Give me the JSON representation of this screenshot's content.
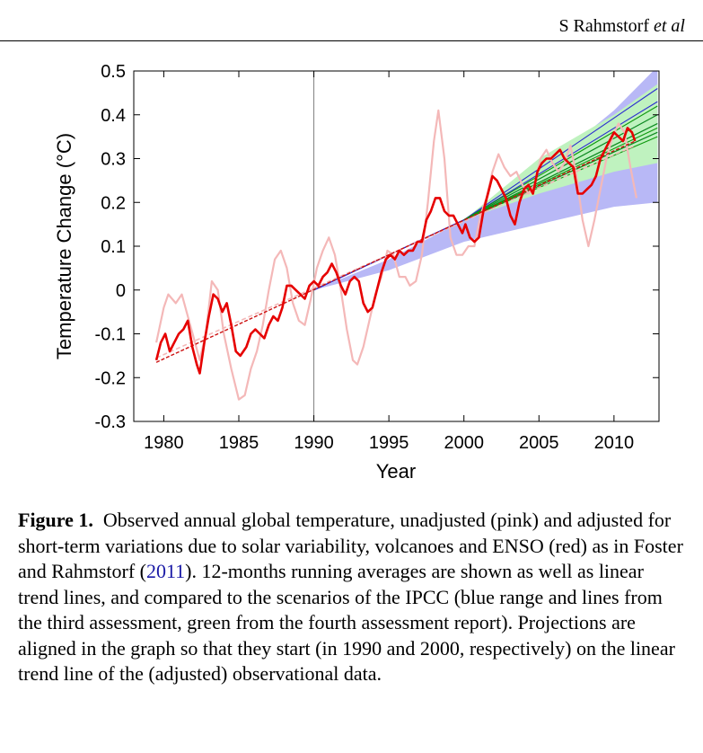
{
  "header": {
    "author": "S Rahmstorf",
    "etal": "et al"
  },
  "chart_data": {
    "type": "line",
    "xlabel": "Year",
    "ylabel": "Temperature Change (°C)",
    "xlim": [
      1978,
      2013
    ],
    "ylim": [
      -0.3,
      0.5
    ],
    "xticks": [
      1980,
      1985,
      1990,
      1995,
      2000,
      2005,
      2010
    ],
    "xtick_labels": [
      "1980",
      "1985",
      "1990",
      "1995",
      "2000",
      "2005",
      "2010"
    ],
    "yticks": [
      -0.3,
      -0.2,
      -0.1,
      0,
      0.1,
      0.2,
      0.3,
      0.4,
      0.5
    ],
    "ytick_labels": [
      "-0.3",
      "-0.2",
      "-0.1",
      "0",
      "0.1",
      "0.2",
      "0.3",
      "0.4",
      "0.5"
    ],
    "vline_x": 1990,
    "grid": false,
    "colors": {
      "unadjusted": "#f4b8b8",
      "adjusted": "#e60000",
      "trend": "#cc1111",
      "ipcc_tar_band": "#b8b8f6",
      "ipcc_ar4_band": "#bff2bf",
      "ipcc_tar_lines": "#2b2bd0",
      "ipcc_ar4_lines": "#0c980c",
      "axes": "#000000",
      "vline": "#808080"
    },
    "series": [
      {
        "key": "unadjusted",
        "points": [
          [
            1979.5,
            -0.12
          ],
          [
            1980.0,
            -0.04
          ],
          [
            1980.3,
            -0.01
          ],
          [
            1980.8,
            -0.03
          ],
          [
            1981.2,
            -0.01
          ],
          [
            1981.6,
            -0.06
          ],
          [
            1982.0,
            -0.11
          ],
          [
            1982.4,
            -0.16
          ],
          [
            1982.8,
            -0.1
          ],
          [
            1983.2,
            0.02
          ],
          [
            1983.6,
            0.0
          ],
          [
            1984.0,
            -0.1
          ],
          [
            1984.5,
            -0.18
          ],
          [
            1985.0,
            -0.25
          ],
          [
            1985.4,
            -0.24
          ],
          [
            1985.8,
            -0.18
          ],
          [
            1986.2,
            -0.14
          ],
          [
            1986.6,
            -0.08
          ],
          [
            1987.0,
            0.0
          ],
          [
            1987.4,
            0.07
          ],
          [
            1987.8,
            0.09
          ],
          [
            1988.2,
            0.05
          ],
          [
            1988.6,
            -0.03
          ],
          [
            1989.0,
            -0.07
          ],
          [
            1989.4,
            -0.08
          ],
          [
            1989.8,
            -0.02
          ],
          [
            1990.2,
            0.05
          ],
          [
            1990.6,
            0.09
          ],
          [
            1991.0,
            0.12
          ],
          [
            1991.4,
            0.08
          ],
          [
            1991.8,
            0.0
          ],
          [
            1992.2,
            -0.09
          ],
          [
            1992.6,
            -0.16
          ],
          [
            1992.9,
            -0.17
          ],
          [
            1993.3,
            -0.13
          ],
          [
            1993.7,
            -0.07
          ],
          [
            1994.1,
            -0.01
          ],
          [
            1994.5,
            0.03
          ],
          [
            1994.9,
            0.09
          ],
          [
            1995.3,
            0.08
          ],
          [
            1995.7,
            0.03
          ],
          [
            1996.1,
            0.03
          ],
          [
            1996.4,
            0.01
          ],
          [
            1996.8,
            0.02
          ],
          [
            1997.2,
            0.08
          ],
          [
            1997.6,
            0.2
          ],
          [
            1998.0,
            0.34
          ],
          [
            1998.3,
            0.41
          ],
          [
            1998.7,
            0.3
          ],
          [
            1999.1,
            0.12
          ],
          [
            1999.5,
            0.08
          ],
          [
            1999.9,
            0.08
          ],
          [
            2000.3,
            0.1
          ],
          [
            2000.7,
            0.1
          ],
          [
            2001.1,
            0.17
          ],
          [
            2001.5,
            0.21
          ],
          [
            2001.9,
            0.27
          ],
          [
            2002.3,
            0.31
          ],
          [
            2002.7,
            0.28
          ],
          [
            2003.1,
            0.26
          ],
          [
            2003.5,
            0.27
          ],
          [
            2003.9,
            0.24
          ],
          [
            2004.3,
            0.22
          ],
          [
            2004.7,
            0.24
          ],
          [
            2005.1,
            0.3
          ],
          [
            2005.5,
            0.32
          ],
          [
            2005.9,
            0.29
          ],
          [
            2006.3,
            0.27
          ],
          [
            2006.7,
            0.29
          ],
          [
            2007.1,
            0.33
          ],
          [
            2007.5,
            0.26
          ],
          [
            2007.9,
            0.16
          ],
          [
            2008.3,
            0.1
          ],
          [
            2008.7,
            0.16
          ],
          [
            2009.1,
            0.23
          ],
          [
            2009.5,
            0.3
          ],
          [
            2009.9,
            0.35
          ],
          [
            2010.3,
            0.38
          ],
          [
            2010.7,
            0.36
          ],
          [
            2011.1,
            0.28
          ],
          [
            2011.5,
            0.21
          ]
        ]
      },
      {
        "key": "adjusted",
        "points": [
          [
            1979.5,
            -0.16
          ],
          [
            1979.8,
            -0.12
          ],
          [
            1980.1,
            -0.1
          ],
          [
            1980.4,
            -0.14
          ],
          [
            1980.7,
            -0.12
          ],
          [
            1981.0,
            -0.1
          ],
          [
            1981.3,
            -0.09
          ],
          [
            1981.6,
            -0.07
          ],
          [
            1981.9,
            -0.13
          ],
          [
            1982.2,
            -0.17
          ],
          [
            1982.4,
            -0.19
          ],
          [
            1982.7,
            -0.12
          ],
          [
            1983.0,
            -0.06
          ],
          [
            1983.3,
            -0.01
          ],
          [
            1983.6,
            -0.02
          ],
          [
            1983.9,
            -0.05
          ],
          [
            1984.2,
            -0.03
          ],
          [
            1984.5,
            -0.08
          ],
          [
            1984.8,
            -0.14
          ],
          [
            1985.1,
            -0.15
          ],
          [
            1985.5,
            -0.13
          ],
          [
            1985.8,
            -0.1
          ],
          [
            1986.1,
            -0.09
          ],
          [
            1986.4,
            -0.1
          ],
          [
            1986.7,
            -0.11
          ],
          [
            1987.0,
            -0.08
          ],
          [
            1987.3,
            -0.06
          ],
          [
            1987.6,
            -0.07
          ],
          [
            1987.9,
            -0.04
          ],
          [
            1988.2,
            0.01
          ],
          [
            1988.5,
            0.01
          ],
          [
            1988.8,
            0.0
          ],
          [
            1989.1,
            -0.01
          ],
          [
            1989.4,
            -0.02
          ],
          [
            1989.7,
            0.01
          ],
          [
            1990.0,
            0.02
          ],
          [
            1990.3,
            0.01
          ],
          [
            1990.6,
            0.03
          ],
          [
            1990.9,
            0.04
          ],
          [
            1991.2,
            0.06
          ],
          [
            1991.5,
            0.04
          ],
          [
            1991.8,
            0.01
          ],
          [
            1992.1,
            -0.01
          ],
          [
            1992.4,
            0.02
          ],
          [
            1992.7,
            0.03
          ],
          [
            1993.0,
            0.02
          ],
          [
            1993.3,
            -0.03
          ],
          [
            1993.6,
            -0.05
          ],
          [
            1993.9,
            -0.04
          ],
          [
            1994.2,
            0.0
          ],
          [
            1994.5,
            0.04
          ],
          [
            1994.8,
            0.07
          ],
          [
            1995.1,
            0.08
          ],
          [
            1995.4,
            0.07
          ],
          [
            1995.7,
            0.09
          ],
          [
            1996.0,
            0.08
          ],
          [
            1996.3,
            0.09
          ],
          [
            1996.6,
            0.09
          ],
          [
            1996.9,
            0.11
          ],
          [
            1997.2,
            0.11
          ],
          [
            1997.5,
            0.16
          ],
          [
            1997.8,
            0.18
          ],
          [
            1998.1,
            0.21
          ],
          [
            1998.4,
            0.21
          ],
          [
            1998.7,
            0.18
          ],
          [
            1999.0,
            0.17
          ],
          [
            1999.3,
            0.17
          ],
          [
            1999.6,
            0.15
          ],
          [
            1999.9,
            0.13
          ],
          [
            2000.1,
            0.15
          ],
          [
            2000.4,
            0.12
          ],
          [
            2000.7,
            0.11
          ],
          [
            2001.0,
            0.12
          ],
          [
            2001.3,
            0.18
          ],
          [
            2001.6,
            0.22
          ],
          [
            2001.9,
            0.26
          ],
          [
            2002.2,
            0.25
          ],
          [
            2002.5,
            0.23
          ],
          [
            2002.8,
            0.21
          ],
          [
            2003.1,
            0.17
          ],
          [
            2003.4,
            0.15
          ],
          [
            2003.7,
            0.2
          ],
          [
            2004.0,
            0.23
          ],
          [
            2004.3,
            0.24
          ],
          [
            2004.6,
            0.22
          ],
          [
            2004.9,
            0.27
          ],
          [
            2005.2,
            0.29
          ],
          [
            2005.5,
            0.3
          ],
          [
            2005.8,
            0.3
          ],
          [
            2006.1,
            0.31
          ],
          [
            2006.4,
            0.32
          ],
          [
            2006.7,
            0.3
          ],
          [
            2007.0,
            0.29
          ],
          [
            2007.3,
            0.28
          ],
          [
            2007.6,
            0.22
          ],
          [
            2007.9,
            0.22
          ],
          [
            2008.2,
            0.23
          ],
          [
            2008.5,
            0.24
          ],
          [
            2008.8,
            0.26
          ],
          [
            2009.1,
            0.3
          ],
          [
            2009.4,
            0.32
          ],
          [
            2009.7,
            0.34
          ],
          [
            2010.0,
            0.36
          ],
          [
            2010.3,
            0.35
          ],
          [
            2010.6,
            0.34
          ],
          [
            2010.9,
            0.37
          ],
          [
            2011.2,
            0.36
          ],
          [
            2011.4,
            0.34
          ]
        ]
      },
      {
        "key": "trend_adjusted",
        "points": [
          [
            1979.5,
            -0.165
          ],
          [
            2011.4,
            0.34
          ]
        ]
      },
      {
        "key": "trend_unadjusted",
        "points": [
          [
            1979.5,
            -0.155
          ],
          [
            2011.4,
            0.33
          ]
        ]
      }
    ],
    "ipcc_tar_band": {
      "upper": [
        [
          1990,
          0.0
        ],
        [
          1995,
          0.07
        ],
        [
          2000,
          0.16
        ],
        [
          2005,
          0.27
        ],
        [
          2010,
          0.41
        ],
        [
          2012.9,
          0.51
        ]
      ],
      "lower": [
        [
          1990,
          0.0
        ],
        [
          1995,
          0.045
        ],
        [
          2000,
          0.11
        ],
        [
          2005,
          0.15
        ],
        [
          2010,
          0.19
        ],
        [
          2012.9,
          0.2
        ]
      ]
    },
    "ipcc_ar4_band": {
      "upper": [
        [
          2000,
          0.16
        ],
        [
          2005,
          0.3
        ],
        [
          2010,
          0.4
        ],
        [
          2012.9,
          0.47
        ]
      ],
      "lower": [
        [
          2000,
          0.16
        ],
        [
          2005,
          0.22
        ],
        [
          2010,
          0.27
        ],
        [
          2012.9,
          0.29
        ]
      ]
    },
    "ipcc_tar_lines": [
      [
        [
          1990,
          0.0
        ],
        [
          2000,
          0.16
        ],
        [
          2012.9,
          0.46
        ]
      ],
      [
        [
          1990,
          0.0
        ],
        [
          2000,
          0.16
        ],
        [
          2012.9,
          0.43
        ]
      ],
      [
        [
          1990,
          0.0
        ],
        [
          2000,
          0.16
        ],
        [
          2012.9,
          0.4
        ]
      ],
      [
        [
          1990,
          0.0
        ],
        [
          2000,
          0.16
        ],
        [
          2012.9,
          0.38
        ]
      ],
      [
        [
          1990,
          0.0
        ],
        [
          2000,
          0.16
        ],
        [
          2012.9,
          0.36
        ]
      ]
    ],
    "ipcc_ar4_lines": [
      [
        [
          2000,
          0.16
        ],
        [
          2012.9,
          0.42
        ]
      ],
      [
        [
          2000,
          0.16
        ],
        [
          2012.9,
          0.4
        ]
      ],
      [
        [
          2000,
          0.16
        ],
        [
          2012.9,
          0.38
        ]
      ],
      [
        [
          2000,
          0.16
        ],
        [
          2012.9,
          0.37
        ]
      ],
      [
        [
          2000,
          0.16
        ],
        [
          2012.9,
          0.36
        ]
      ],
      [
        [
          2000,
          0.16
        ],
        [
          2012.9,
          0.35
        ]
      ]
    ]
  },
  "caption": {
    "label": "Figure 1.",
    "text_1": "Observed annual global temperature, unadjusted (pink) and adjusted for short-term variations due to solar variability, volcanoes and ENSO (red) as in Foster and Rahmstorf (",
    "link": "2011",
    "text_2": "). 12-months running averages are shown as well as linear trend lines, and compared to the scenarios of the IPCC (blue range and lines from the third assessment, green from the fourth assessment report). Projections are aligned in the graph so that they start (in 1990 and 2000, respectively) on the linear trend line of the (adjusted) observational data."
  }
}
